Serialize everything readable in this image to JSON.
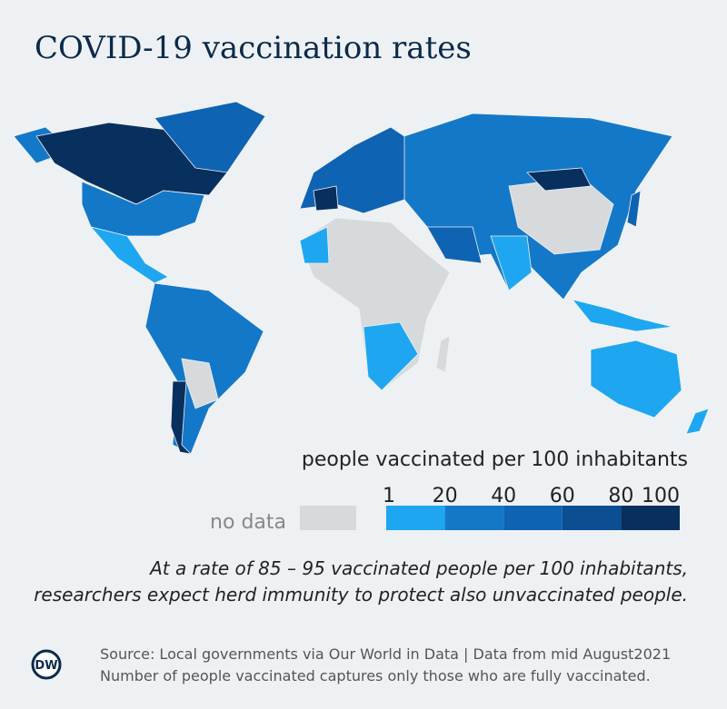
{
  "header": {
    "title": "COVID-19 vaccination rates"
  },
  "legend": {
    "title": "people vaccinated per 100 inhabitants",
    "ticks": [
      1,
      20,
      40,
      60,
      80,
      100
    ],
    "colors": [
      "#1ea7f0",
      "#1478c9",
      "#0f63b3",
      "#0b4e92",
      "#08305e"
    ],
    "no_data_label": "no data",
    "no_data_color": "#d6dadd"
  },
  "note": {
    "lines": [
      "At a rate of 85 – 95 vaccinated people per 100 inhabitants,",
      "researchers expect herd immunity to protect also unvaccinated people."
    ]
  },
  "footer": {
    "logo": "DW",
    "lines": [
      "Source: Local governments via Our World in Data | Data from mid August2021",
      "Number of people vaccinated captures only those who are fully vaccinated."
    ]
  }
}
